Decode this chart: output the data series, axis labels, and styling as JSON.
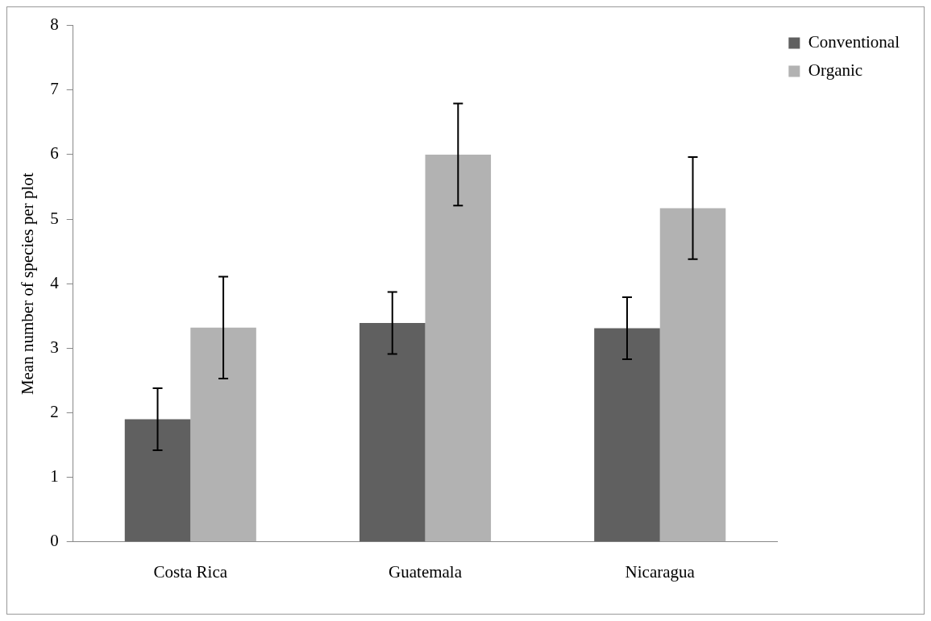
{
  "chart_data": {
    "type": "bar",
    "ylabel": "Mean number of species per plot",
    "categories": [
      "Costa Rica",
      "Guatemala",
      "Nicaragua"
    ],
    "series": [
      {
        "name": "Conventional",
        "color": "#606060",
        "values": [
          1.9,
          3.39,
          3.31
        ],
        "errors": [
          0.48,
          0.48,
          0.48
        ]
      },
      {
        "name": "Organic",
        "color": "#b2b2b2",
        "values": [
          3.32,
          6.0,
          5.17
        ],
        "errors": [
          0.79,
          0.79,
          0.79
        ]
      }
    ],
    "ylim": [
      0,
      8
    ],
    "yticks": [
      0,
      1,
      2,
      3,
      4,
      5,
      6,
      7,
      8
    ],
    "grid": false,
    "legend": "right"
  }
}
